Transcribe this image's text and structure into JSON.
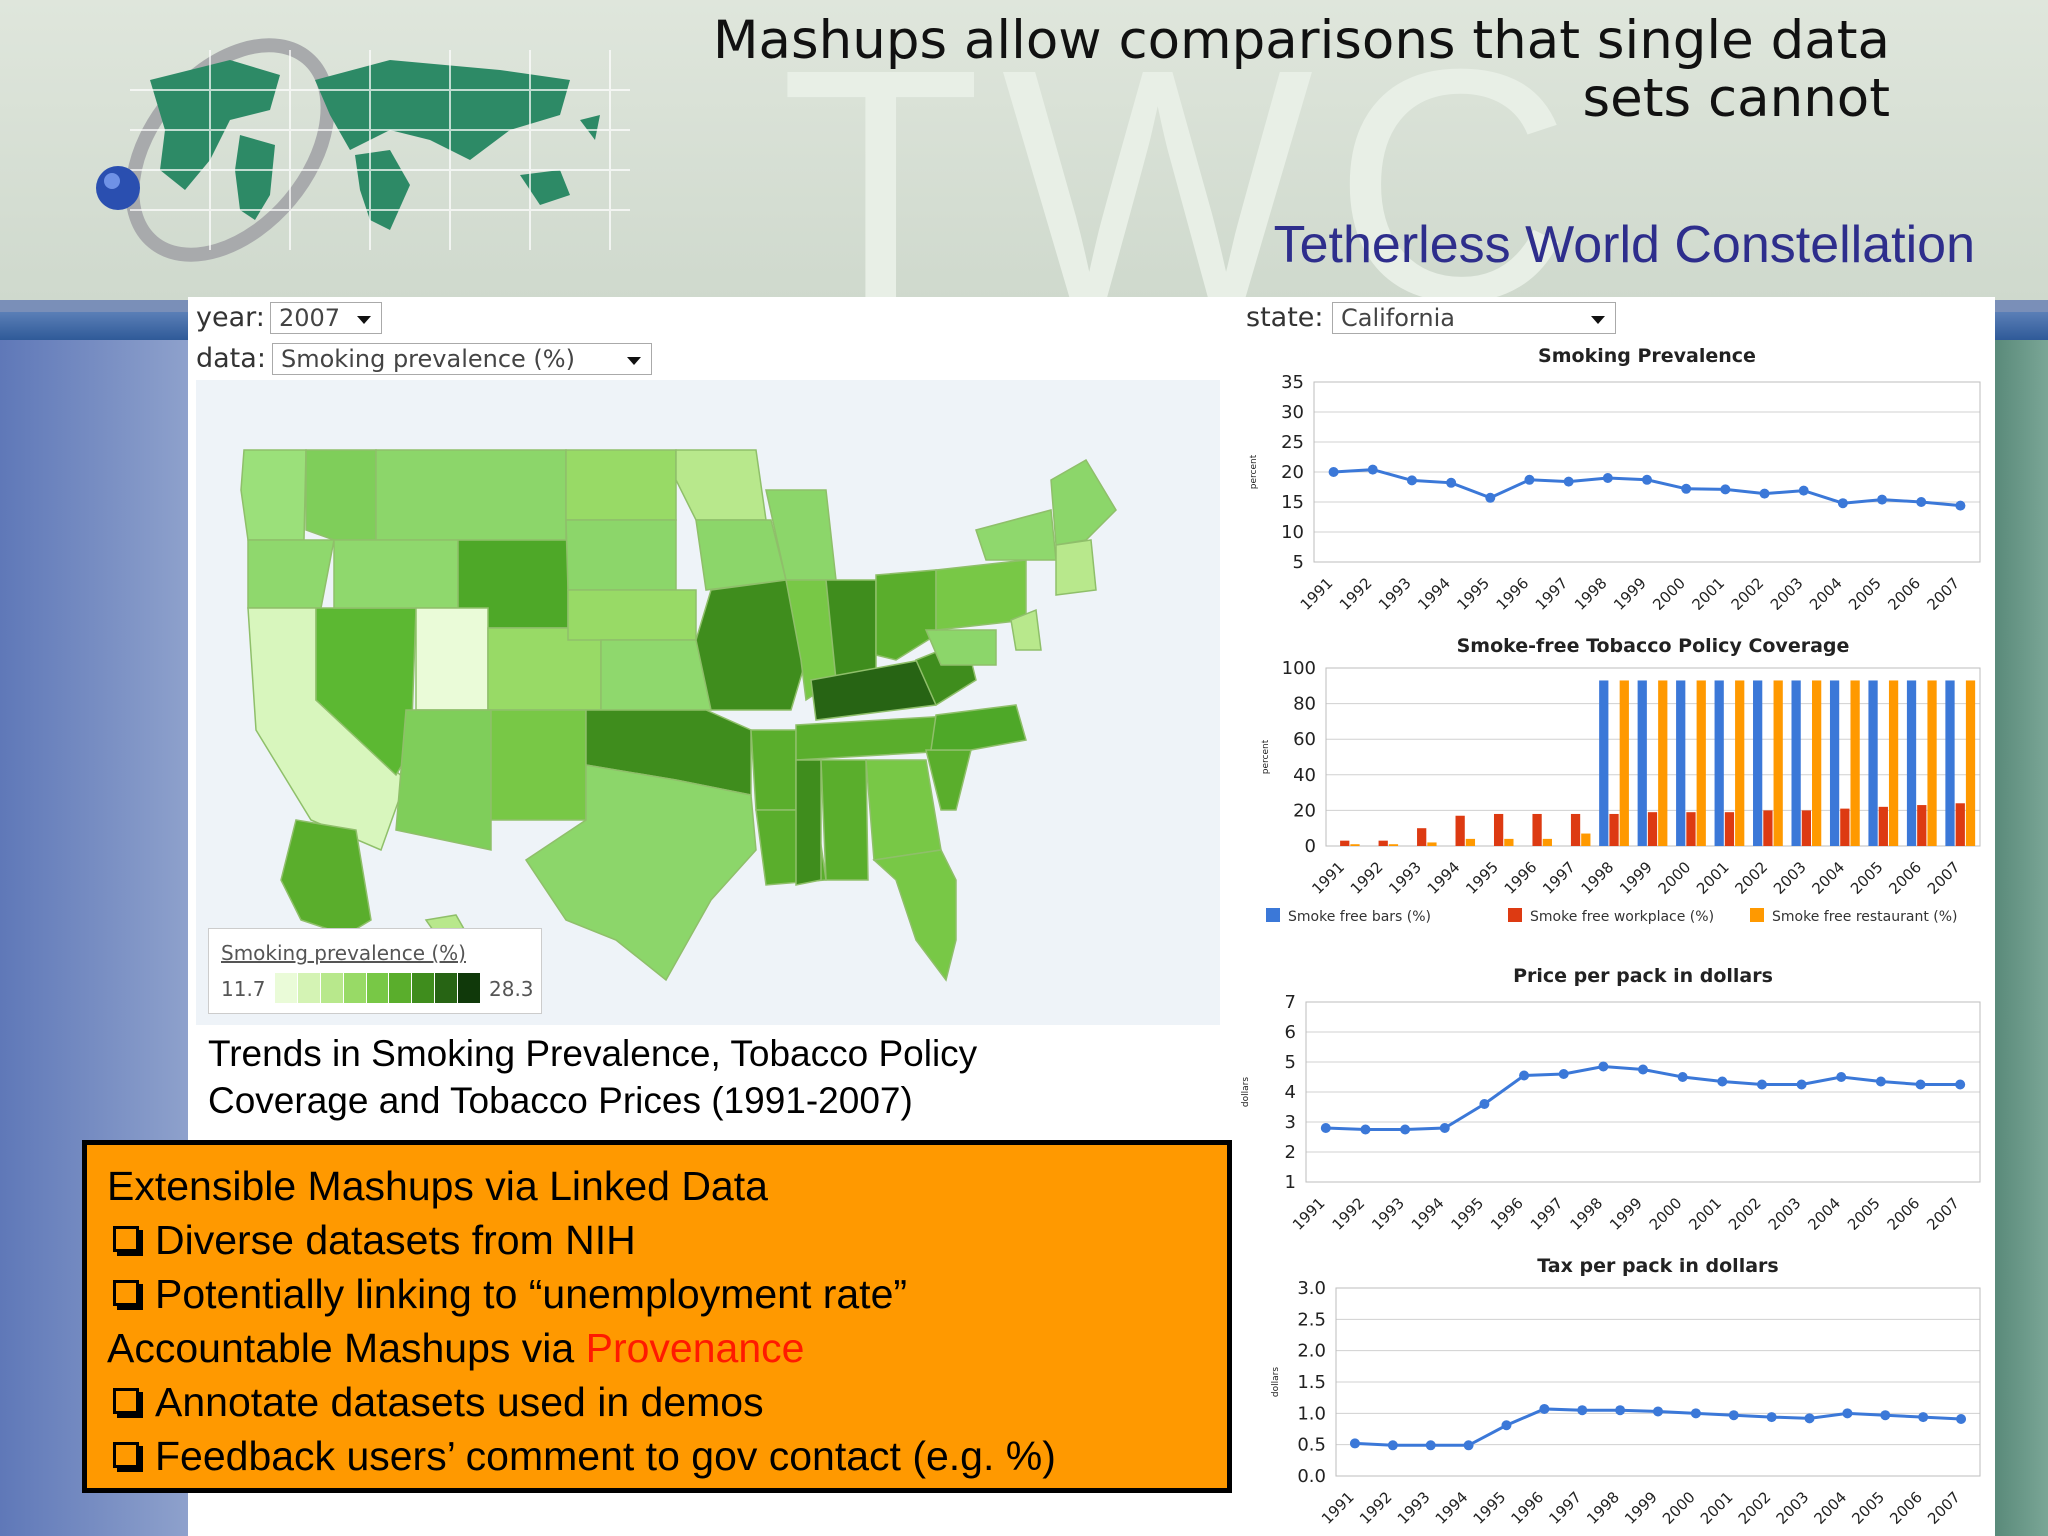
{
  "slide": {
    "title": "Mashups allow comparisons that single data sets cannot",
    "subtitle": "Tetherless World Constellation",
    "watermark": "TWC"
  },
  "controls": {
    "year_label": "year:",
    "year_value": "2007",
    "data_label": "data:",
    "data_value": "Smoking prevalence (%)",
    "state_label": "state:",
    "state_value": "California"
  },
  "map": {
    "legend_title": "Smoking prevalence (%)",
    "legend_min": "11.7",
    "legend_max": "28.3",
    "legend_colors": [
      "#eafbd8",
      "#d4f3b4",
      "#b8e88c",
      "#98da66",
      "#78c846",
      "#5aae2c",
      "#3f8d1d",
      "#276414",
      "#10390a"
    ]
  },
  "caption": {
    "line1": "Trends in Smoking Prevalence, Tobacco Policy",
    "line2": "Coverage and Tobacco Prices (1991-2007)"
  },
  "notes": {
    "h1": "Extensible Mashups via Linked Data",
    "b1": "Diverse datasets from NIH",
    "b2": "Potentially linking to “unemployment rate”",
    "h2_prefix": "Accountable Mashups via ",
    "h2_highlight": "Provenance",
    "b3": "Annotate datasets used in demos",
    "b4": "Feedback users’ comment to gov contact (e.g. %)"
  },
  "chart_data": [
    {
      "type": "line",
      "title": "Smoking Prevalence",
      "ylabel": "percent",
      "x": [
        "1991",
        "1992",
        "1993",
        "1994",
        "1995",
        "1996",
        "1997",
        "1998",
        "1999",
        "2000",
        "2001",
        "2002",
        "2003",
        "2004",
        "2005",
        "2006",
        "2007"
      ],
      "values": [
        20.0,
        20.4,
        18.6,
        18.2,
        15.7,
        18.7,
        18.4,
        19.0,
        18.7,
        17.2,
        17.1,
        16.4,
        16.9,
        14.8,
        15.4,
        15.0,
        14.4
      ],
      "yticks": [
        "5",
        "10",
        "15",
        "20",
        "25",
        "30",
        "35"
      ],
      "ylim": [
        5,
        35
      ],
      "color": "#3b78d8"
    },
    {
      "type": "bar",
      "title": "Smoke-free Tobacco Policy Coverage",
      "ylabel": "percent",
      "categories": [
        "1991",
        "1992",
        "1993",
        "1994",
        "1995",
        "1996",
        "1997",
        "1998",
        "1999",
        "2000",
        "2001",
        "2002",
        "2003",
        "2004",
        "2005",
        "2006",
        "2007"
      ],
      "series": [
        {
          "name": "Smoke free bars (%)",
          "color": "#3b78d8",
          "values": [
            0,
            0,
            0,
            0,
            0,
            0,
            0,
            93,
            93,
            93,
            93,
            93,
            93,
            93,
            93,
            93,
            93
          ]
        },
        {
          "name": "Smoke free workplace (%)",
          "color": "#dd3a12",
          "values": [
            3,
            3,
            10,
            17,
            18,
            18,
            18,
            18,
            19,
            19,
            19,
            20,
            20,
            21,
            22,
            23,
            24
          ]
        },
        {
          "name": "Smoke free restaurant (%)",
          "color": "#ff9900",
          "values": [
            1,
            1,
            2,
            4,
            4,
            4,
            7,
            93,
            93,
            93,
            93,
            93,
            93,
            93,
            93,
            93,
            93
          ]
        }
      ],
      "yticks": [
        "0",
        "20",
        "40",
        "60",
        "80",
        "100"
      ],
      "ylim": [
        0,
        100
      ]
    },
    {
      "type": "line",
      "title": "Price per pack in dollars",
      "ylabel": "dollars",
      "x": [
        "1991",
        "1992",
        "1993",
        "1994",
        "1995",
        "1996",
        "1997",
        "1998",
        "1999",
        "2000",
        "2001",
        "2002",
        "2003",
        "2004",
        "2005",
        "2006",
        "2007"
      ],
      "values": [
        2.8,
        2.75,
        2.75,
        2.8,
        3.6,
        4.55,
        4.6,
        4.85,
        4.75,
        4.5,
        4.35,
        4.25,
        4.25,
        4.5,
        4.35,
        4.25,
        4.25
      ],
      "yticks": [
        "1",
        "2",
        "3",
        "4",
        "5",
        "6",
        "7"
      ],
      "ylim": [
        1,
        7
      ],
      "color": "#3b78d8"
    },
    {
      "type": "line",
      "title": "Tax per pack in dollars",
      "ylabel": "dollars",
      "x": [
        "1991",
        "1992",
        "1993",
        "1994",
        "1995",
        "1996",
        "1997",
        "1998",
        "1999",
        "2000",
        "2001",
        "2002",
        "2003",
        "2004",
        "2005",
        "2006",
        "2007"
      ],
      "values": [
        0.52,
        0.49,
        0.49,
        0.49,
        0.81,
        1.07,
        1.05,
        1.05,
        1.03,
        1.0,
        0.97,
        0.94,
        0.92,
        1.0,
        0.97,
        0.94,
        0.91
      ],
      "yticks": [
        "0.0",
        "0.5",
        "1.0",
        "1.5",
        "2.0",
        "2.5",
        "3.0"
      ],
      "ylim": [
        0,
        3
      ],
      "color": "#3b78d8"
    }
  ]
}
